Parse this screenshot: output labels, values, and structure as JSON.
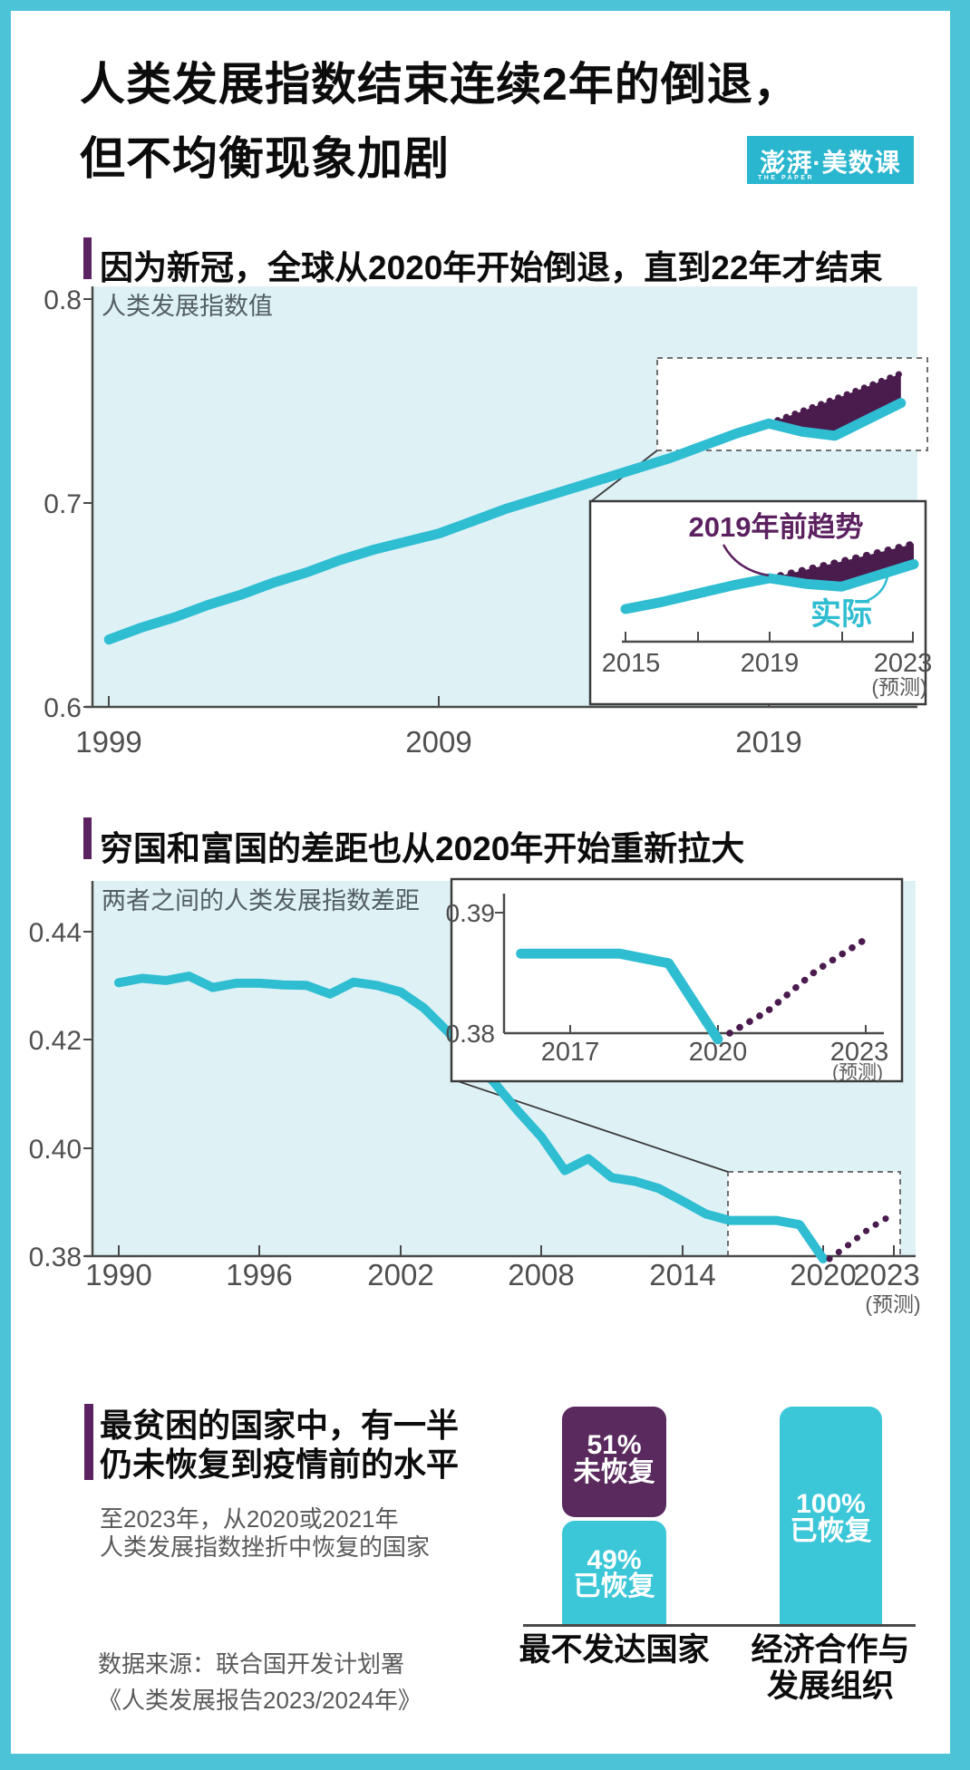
{
  "title": {
    "line1": "人类发展指数结束连续2年的倒退，",
    "line2": "但不均衡现象加剧"
  },
  "logo": {
    "text": "澎湃·美数课",
    "subtext": "THE PAPER"
  },
  "colors": {
    "cyan_frame": "#4dc3d8",
    "cyan_logo": "#29b6ce",
    "cyan_line": "#2fbdd2",
    "cyan_bar": "#3bc7d8",
    "plot_bg": "#def2f6",
    "purple_area": "#4a1c4e",
    "purple_bar": "#5a2a5e",
    "purple_accent": "#5c2160",
    "ink": "#0c0c0c",
    "gray_text": "#595959"
  },
  "sections": [
    {
      "heading": "因为新冠，全球从2020年开始倒退，直到22年才结束"
    },
    {
      "heading": "穷国和富国的差距也从2020年开始重新拉大"
    },
    {
      "heading_line1": "最贫困的国家中，有一半",
      "heading_line2": "仍未恢复到疫情前的水平",
      "subtitle_line1": "至2023年，从2020或2021年",
      "subtitle_line2": "人类发展指数挫折中恢复的国家",
      "source_line1": "数据来源：联合国开发计划署",
      "source_line2": "《人类发展报告2023/2024年》"
    }
  ],
  "chart_data": [
    {
      "type": "line",
      "title": "因为新冠，全球从2020年开始倒退，直到22年才结束",
      "inplot_label": "人类发展指数值",
      "ylabel": "人类发展指数值",
      "ylim": [
        0.6,
        0.8
      ],
      "ytick_labels": [
        "0.8",
        "0.7",
        "0.6"
      ],
      "xtick_labels": [
        "1999",
        "2009",
        "2019"
      ],
      "x": [
        1999,
        2000,
        2001,
        2002,
        2003,
        2004,
        2005,
        2006,
        2007,
        2008,
        2009,
        2010,
        2011,
        2012,
        2013,
        2014,
        2015,
        2016,
        2017,
        2018,
        2019,
        2020,
        2021,
        2022,
        2023
      ],
      "series": [
        {
          "name": "实际",
          "values": [
            0.633,
            0.639,
            0.644,
            0.65,
            0.655,
            0.661,
            0.666,
            0.672,
            0.677,
            0.681,
            0.685,
            0.691,
            0.697,
            0.702,
            0.707,
            0.712,
            0.717,
            0.722,
            0.728,
            0.734,
            0.739,
            0.735,
            0.733,
            0.741,
            0.749
          ]
        },
        {
          "name": "2019年前趋势",
          "x": [
            2019,
            2020,
            2021,
            2022,
            2023
          ],
          "values": [
            0.739,
            0.745,
            0.751,
            0.7572,
            0.7635
          ]
        }
      ],
      "inset": {
        "xtick_labels": [
          "2015",
          "2019",
          "2023"
        ],
        "forecast_label": "(预测)",
        "trend_label": "2019年前趋势",
        "actual_label": "实际"
      },
      "legend_position": "inset",
      "grid": false
    },
    {
      "type": "line",
      "title": "穷国和富国的差距也从2020年开始重新拉大",
      "inplot_label": "两者之间的人类发展指数差距",
      "ylabel": "两者之间的人类发展指数差距",
      "ylim": [
        0.38,
        0.44
      ],
      "ytick_labels": [
        "0.44",
        "0.42",
        "0.40",
        "0.38"
      ],
      "xtick_labels": [
        "1990",
        "1996",
        "2002",
        "2008",
        "2014",
        "2020",
        "2023"
      ],
      "forecast_label": "(预测)",
      "x": [
        1990,
        1991,
        1992,
        1993,
        1994,
        1995,
        1996,
        1997,
        1998,
        1999,
        2000,
        2001,
        2002,
        2003,
        2004,
        2005,
        2006,
        2007,
        2008,
        2009,
        2010,
        2011,
        2012,
        2013,
        2014,
        2015,
        2016,
        2017,
        2018,
        2019,
        2020
      ],
      "series": [
        {
          "name": "实际",
          "values": [
            0.4305,
            0.4313,
            0.4309,
            0.4317,
            0.4296,
            0.4304,
            0.4304,
            0.4301,
            0.43,
            0.4284,
            0.4306,
            0.43,
            0.4288,
            0.4258,
            0.4215,
            0.4168,
            0.412,
            0.4068,
            0.402,
            0.3958,
            0.398,
            0.3945,
            0.3938,
            0.3925,
            0.3902,
            0.3878,
            0.3866,
            0.3866,
            0.3866,
            0.3858,
            0.3795
          ]
        },
        {
          "name": "预测",
          "x": [
            2021,
            2022,
            2023
          ],
          "values": [
            0.3818,
            0.3852,
            0.3878
          ]
        }
      ],
      "inset": {
        "ytick_labels": [
          "0.39",
          "0.38"
        ],
        "xtick_labels": [
          "2017",
          "2020",
          "2023"
        ],
        "forecast_label": "(预测)"
      },
      "grid": false
    },
    {
      "type": "bar",
      "title": "最贫困的国家中，有一半仍未恢复到疫情前的水平",
      "categories": [
        "最不发达国家",
        "经济合作与发展组织"
      ],
      "series": [
        {
          "name": "未恢复",
          "values": [
            51,
            0
          ]
        },
        {
          "name": "已恢复",
          "values": [
            49,
            100
          ]
        }
      ],
      "labels": {
        "b1_top_pct": "51%",
        "b1_top": "未恢复",
        "b1_bot_pct": "49%",
        "b1_bot": "已恢复",
        "b2_pct": "100%",
        "b2": "已恢复",
        "cat1": "最不发达国家",
        "cat2_line1": "经济合作与",
        "cat2_line2": "发展组织"
      },
      "ylim": [
        0,
        100
      ]
    }
  ]
}
